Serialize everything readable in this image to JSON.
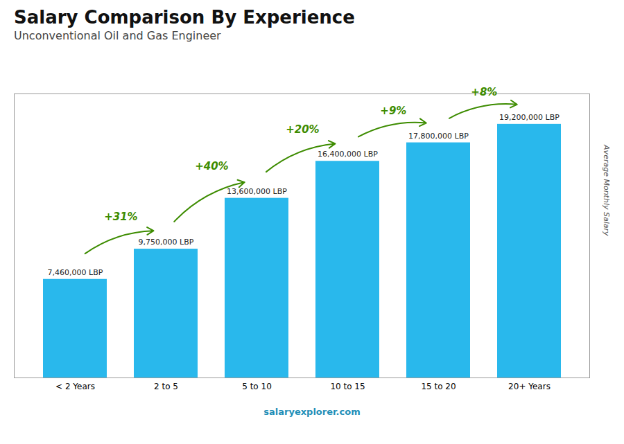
{
  "chart_data": {
    "type": "bar",
    "title": "Salary Comparison By Experience",
    "subtitle": "Unconventional Oil and Gas Engineer",
    "categories": [
      "< 2 Years",
      "2 to 5",
      "5 to 10",
      "10 to 15",
      "15 to 20",
      "20+ Years"
    ],
    "values": [
      7460000,
      9750000,
      13600000,
      16400000,
      17800000,
      19200000
    ],
    "value_labels": [
      "7,460,000 LBP",
      "9,750,000 LBP",
      "13,600,000 LBP",
      "16,400,000 LBP",
      "17,800,000 LBP",
      "19,200,000 LBP"
    ],
    "data_labels": true,
    "color": "#29b8ec",
    "ylabel": "Average Monthly Salary",
    "ylim": [
      0,
      21500000
    ],
    "tick_labels": "x",
    "grid": false,
    "annotations": [
      "+31%",
      "+40%",
      "+20%",
      "+9%",
      "+8%"
    ],
    "caption": "salaryexplorer.com"
  }
}
